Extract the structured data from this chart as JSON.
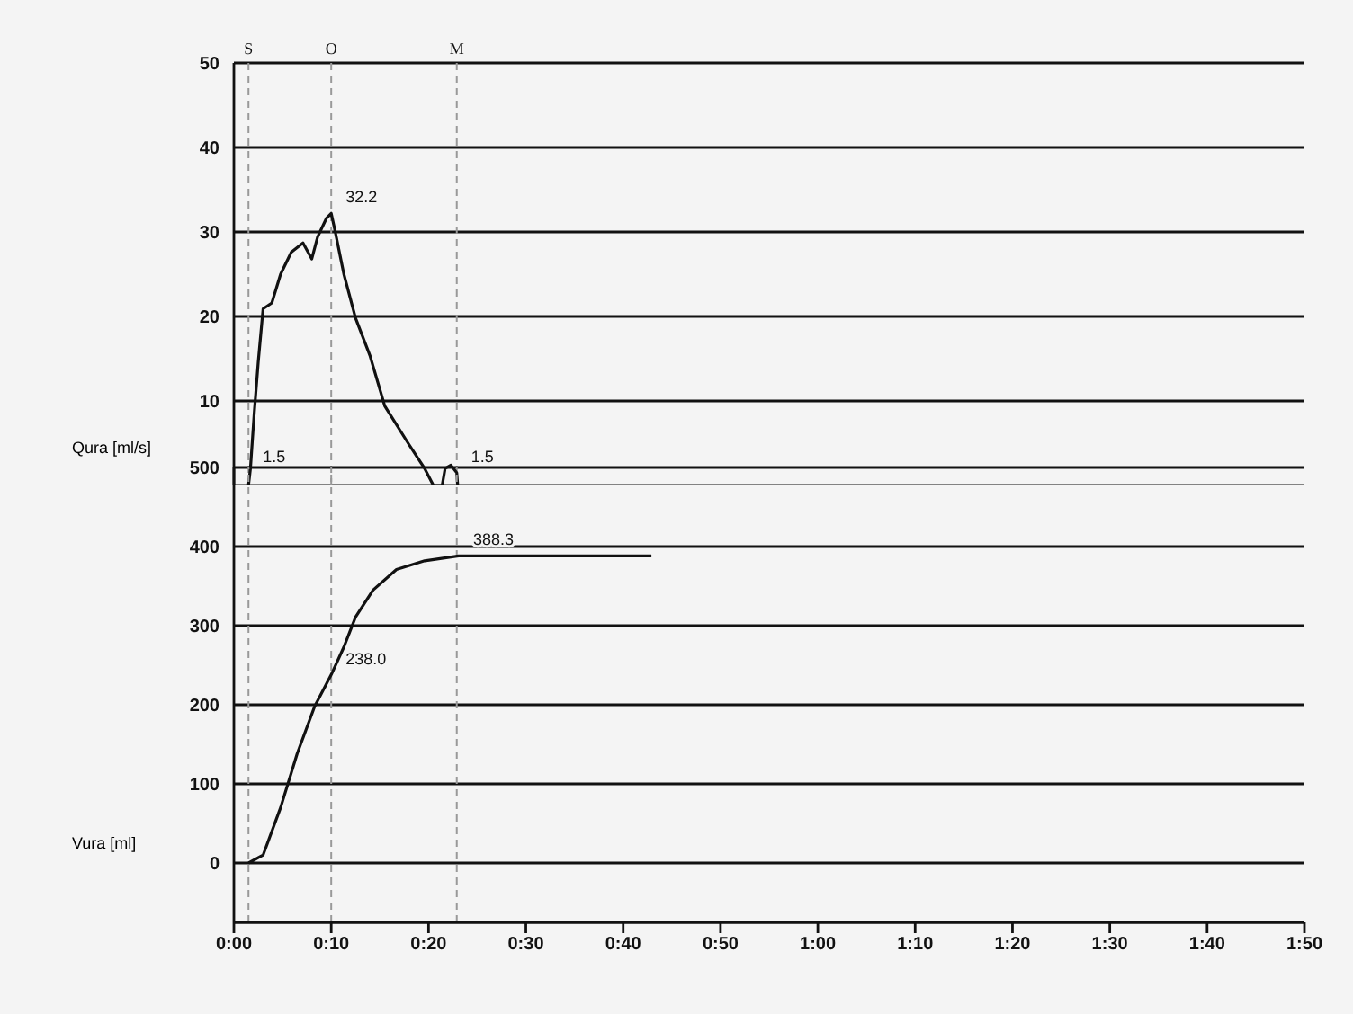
{
  "chart_data": [
    {
      "type": "line",
      "ylabel": "Qura [ml/s]",
      "x": [
        1.5,
        1.7,
        2.1,
        2.5,
        3.0,
        3.9,
        4.8,
        5.9,
        7.1,
        8.0,
        8.6,
        9.5,
        10.0,
        10.4,
        11.3,
        12.5,
        14.0,
        15.5,
        17.9,
        19.6,
        20.5,
        21.4,
        21.7,
        22.3,
        22.9,
        23.0
      ],
      "series": [
        {
          "color": "#111111",
          "values": [
            0,
            2.0,
            8.7,
            14.6,
            20.9,
            21.6,
            25,
            27.6,
            28.7,
            26.8,
            29.4,
            31.6,
            32.2,
            30.1,
            25,
            19.8,
            15.3,
            9.4,
            5.0,
            2.0,
            0,
            0,
            2.0,
            2.4,
            1.5,
            0
          ]
        }
      ],
      "xlim": [
        0,
        110
      ],
      "ylim": [
        0,
        50
      ],
      "yticks": [
        10,
        20,
        30,
        40,
        50
      ],
      "tick_labels": "y",
      "grid": "y",
      "ref_lines": [
        {
          "axis": "x",
          "value": 1.5,
          "label": "S",
          "color": "#999999",
          "line_style": "dashed"
        },
        {
          "axis": "x",
          "value": 10,
          "label": "O",
          "color": "#999999",
          "line_style": "dashed"
        },
        {
          "axis": "x",
          "value": 22.9,
          "label": "M",
          "color": "#999999",
          "line_style": "dashed"
        }
      ],
      "annotations": [
        {
          "text": "1.5",
          "x": 1.5,
          "y": 1.5
        },
        {
          "text": "32.2",
          "x": 10,
          "y": 32.2
        },
        {
          "text": "1.5",
          "x": 22.9,
          "y": 1.5
        }
      ]
    },
    {
      "type": "line",
      "ylabel": "Vura [ml]",
      "x": [
        1.5,
        3.0,
        4.8,
        6.5,
        8.3,
        10.0,
        11.3,
        12.5,
        14.3,
        16.7,
        19.6,
        23.1,
        42.9
      ],
      "series": [
        {
          "color": "#111111",
          "values": [
            0,
            10,
            70,
            138,
            198,
            238,
            273,
            311,
            345,
            371,
            382,
            388.3,
            388.3
          ]
        }
      ],
      "xlim": [
        0,
        110
      ],
      "ylim": [
        -75,
        500
      ],
      "yticks": [
        0,
        100,
        200,
        300,
        400,
        500
      ],
      "xticks": [
        {
          "value": 0,
          "label": "0:00"
        },
        {
          "value": 10,
          "label": "0:10"
        },
        {
          "value": 20,
          "label": "0:20"
        },
        {
          "value": 30,
          "label": "0:30"
        },
        {
          "value": 40,
          "label": "0:40"
        },
        {
          "value": 50,
          "label": "0:50"
        },
        {
          "value": 60,
          "label": "1:00"
        },
        {
          "value": 70,
          "label": "1:10"
        },
        {
          "value": 80,
          "label": "1:20"
        },
        {
          "value": 90,
          "label": "1:30"
        },
        {
          "value": 100,
          "label": "1:40"
        },
        {
          "value": 110,
          "label": "1:50"
        }
      ],
      "grid": "y",
      "ref_lines": [
        {
          "axis": "x",
          "value": 1.5,
          "color": "#999999",
          "line_style": "dashed"
        },
        {
          "axis": "x",
          "value": 10,
          "color": "#999999",
          "line_style": "dashed"
        },
        {
          "axis": "x",
          "value": 22.9,
          "color": "#999999",
          "line_style": "dashed"
        }
      ],
      "annotations": [
        {
          "text": "238.0",
          "x": 10,
          "y": 238.0
        },
        {
          "text": "388.3",
          "x": 23.1,
          "y": 388.3
        }
      ]
    }
  ]
}
